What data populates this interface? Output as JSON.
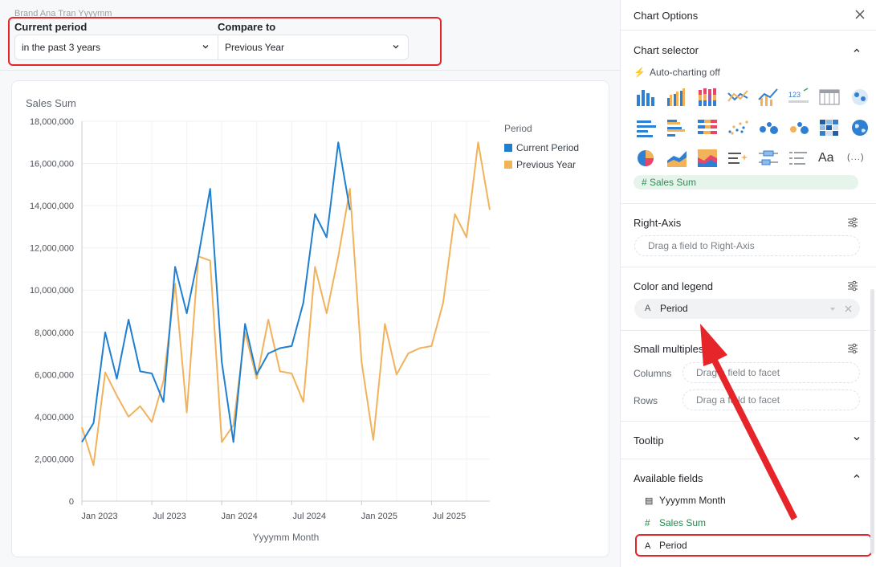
{
  "header": {
    "page_title": "Brand Ana Tran Yyyymm",
    "current_period_label": "Current period",
    "current_period_value": "in the past 3 years",
    "compare_label": "Compare to",
    "compare_value": "Previous Year"
  },
  "chart_data": {
    "type": "line",
    "title": "Sales Sum",
    "xlabel": "Yyyymm Month",
    "ylabel": "",
    "ylim": [
      0,
      18000000
    ],
    "y_ticks": [
      "0",
      "2,000,000",
      "4,000,000",
      "6,000,000",
      "8,000,000",
      "10,000,000",
      "12,000,000",
      "14,000,000",
      "16,000,000",
      "18,000,000"
    ],
    "x_ticks": [
      "Jan 2023",
      "Jul 2023",
      "Jan 2024",
      "Jul 2024",
      "Jan 2025",
      "Jul 2025"
    ],
    "x": [
      "2023-01",
      "2023-02",
      "2023-03",
      "2023-04",
      "2023-05",
      "2023-06",
      "2023-07",
      "2023-08",
      "2023-09",
      "2023-10",
      "2023-11",
      "2023-12",
      "2024-01",
      "2024-02",
      "2024-03",
      "2024-04",
      "2024-05",
      "2024-06",
      "2024-07",
      "2024-08",
      "2024-09",
      "2024-10",
      "2024-11",
      "2024-12",
      "2025-01",
      "2025-02",
      "2025-03",
      "2025-04",
      "2025-05",
      "2025-06",
      "2025-07",
      "2025-08",
      "2025-09",
      "2025-10",
      "2025-11",
      "2025-12"
    ],
    "legend_title": "Period",
    "legend_position": "right",
    "series": [
      {
        "name": "Current Period",
        "color": "#1f7fd1",
        "values": [
          2800000,
          3700000,
          8000000,
          5800000,
          8600000,
          6150000,
          6050000,
          4700000,
          11100000,
          8900000,
          11600000,
          14800000,
          6600000,
          2800000,
          8400000,
          6000000,
          7000000,
          7250000,
          7350000,
          9400000,
          13600000,
          12500000,
          17000000,
          13800000,
          null,
          null,
          null,
          null,
          null,
          null,
          null,
          null,
          null,
          null,
          null,
          null
        ]
      },
      {
        "name": "Previous Year",
        "color": "#f2b25a",
        "values": [
          3500000,
          1700000,
          6100000,
          5000000,
          4000000,
          4500000,
          3750000,
          5700000,
          10300000,
          4200000,
          11600000,
          11400000,
          2800000,
          3600000,
          8000000,
          5800000,
          8600000,
          6150000,
          6050000,
          4700000,
          11100000,
          8900000,
          11600000,
          14800000,
          6600000,
          2900000,
          8400000,
          6000000,
          7000000,
          7250000,
          7350000,
          9400000,
          13600000,
          12500000,
          17000000,
          13800000
        ]
      }
    ]
  },
  "panel": {
    "title": "Chart Options",
    "chart_selector": "Chart selector",
    "auto_charting": "Auto-charting off",
    "faded_pill": "Sales Sum",
    "text_icon": "Aa",
    "more_icon": "(...)",
    "right_axis": "Right-Axis",
    "right_axis_drop": "Drag a field to Right-Axis",
    "color_legend": "Color and legend",
    "color_field": "Period",
    "small_multiples": "Small multiples",
    "columns_label": "Columns",
    "rows_label": "Rows",
    "facet_drop": "Drag a field to facet",
    "tooltip": "Tooltip",
    "available_fields": "Available fields",
    "fields": [
      {
        "name": "Yyyymm Month",
        "type_icon": "calendar-icon"
      },
      {
        "name": "Sales Sum",
        "type_icon": "hash-icon"
      },
      {
        "name": "Period",
        "type_icon": "text-type-icon"
      }
    ]
  },
  "annotation_color": "#e5252a"
}
